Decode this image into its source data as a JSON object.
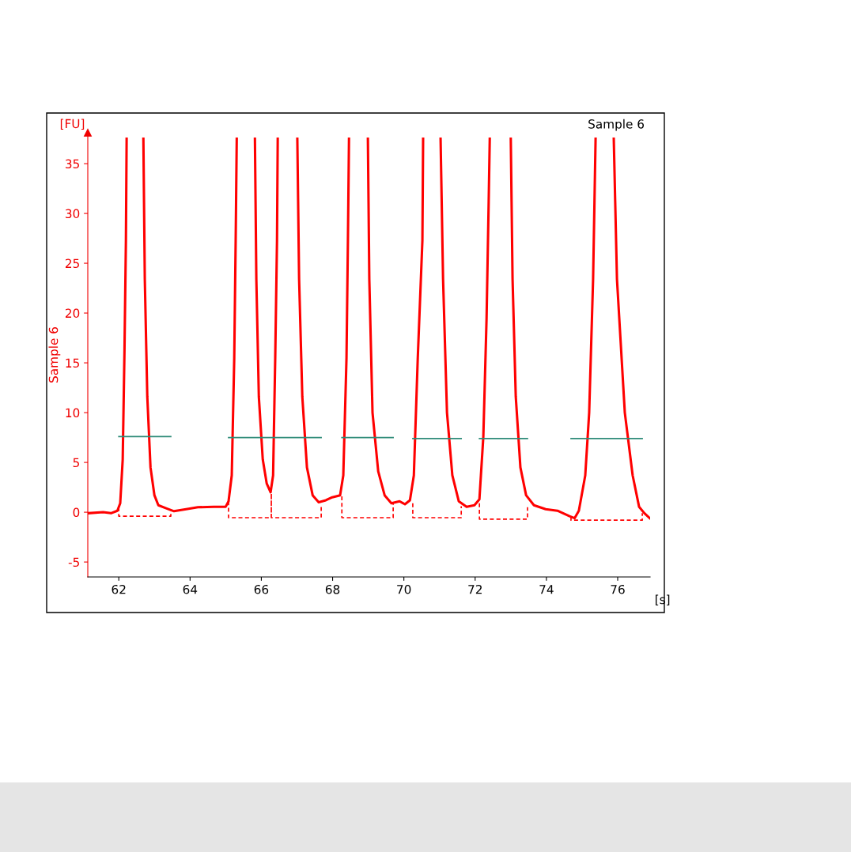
{
  "chart_data": {
    "type": "line",
    "title": "Sample 6",
    "xlabel": "[s]",
    "ylabel": "Sample 6",
    "annotations": [
      "[FU]"
    ],
    "xlim": [
      61.13,
      76.91
    ],
    "ylim": [
      -6.5,
      38.1
    ],
    "xticks": [
      62,
      64,
      66,
      68,
      70,
      72,
      74,
      76
    ],
    "yticks": [
      -5,
      0,
      5,
      10,
      15,
      20,
      25,
      30,
      35
    ],
    "grid": false,
    "tick_labels": "xy",
    "series": [
      {
        "color": "#ff0000",
        "line_style": "solid",
        "x": [
          61.13,
          61.56,
          61.78,
          61.96,
          62.04,
          62.11,
          62.16,
          62.2,
          62.22,
          62.45,
          62.69,
          62.73,
          62.8,
          62.89,
          63.0,
          63.11,
          63.33,
          63.55,
          63.89,
          64.22,
          64.66,
          65.0,
          65.08,
          65.17,
          65.24,
          65.28,
          65.31,
          65.55,
          65.82,
          65.86,
          65.93,
          66.04,
          66.15,
          66.26,
          66.33,
          66.39,
          66.44,
          66.46,
          66.7,
          67.01,
          67.06,
          67.15,
          67.28,
          67.44,
          67.61,
          67.81,
          67.99,
          68.21,
          68.3,
          68.39,
          68.43,
          68.46,
          68.7,
          68.99,
          69.03,
          69.12,
          69.28,
          69.46,
          69.65,
          69.88,
          70.03,
          70.17,
          70.28,
          70.39,
          70.52,
          70.54,
          70.8,
          71.03,
          71.1,
          71.21,
          71.36,
          71.54,
          71.76,
          71.98,
          72.12,
          72.23,
          72.32,
          72.38,
          72.41,
          72.7,
          73.0,
          73.05,
          73.14,
          73.27,
          73.43,
          73.65,
          73.98,
          74.31,
          74.65,
          74.79,
          74.91,
          75.09,
          75.2,
          75.31,
          75.38,
          75.6,
          75.89,
          75.98,
          76.2,
          76.42,
          76.6,
          76.75,
          76.9
        ],
        "values": [
          -0.1,
          0,
          -0.1,
          0.15,
          0.9,
          5.3,
          16.3,
          27.3,
          37.5,
          null,
          37.5,
          23.4,
          11.6,
          4.5,
          1.7,
          0.7,
          0.4,
          0.1,
          0.3,
          0.5,
          0.55,
          0.55,
          1.1,
          3.7,
          15.5,
          27.3,
          37.5,
          null,
          37.5,
          23.4,
          11.6,
          5.3,
          2.9,
          2.0,
          3.7,
          15.5,
          27.3,
          37.5,
          null,
          37.5,
          23.4,
          11.6,
          4.5,
          1.7,
          1.0,
          1.2,
          1.5,
          1.7,
          3.7,
          15.5,
          27.3,
          37.5,
          null,
          37.5,
          23.4,
          10.0,
          4.1,
          1.7,
          0.9,
          1.1,
          0.8,
          1.2,
          3.7,
          15.5,
          27.3,
          37.5,
          null,
          37.5,
          23.4,
          10.0,
          3.7,
          1.1,
          0.55,
          0.7,
          1.3,
          7.6,
          19.4,
          31.2,
          37.5,
          null,
          37.5,
          23.4,
          11.6,
          4.5,
          1.7,
          0.7,
          0.3,
          0.15,
          -0.4,
          -0.6,
          0.15,
          3.7,
          10.0,
          23.4,
          37.5,
          null,
          37.5,
          23.4,
          10.0,
          3.7,
          0.55,
          -0.1,
          -0.6
        ]
      },
      {
        "type": "line",
        "color": "#2e8b78",
        "line_style": "solid",
        "x": [
          62.0,
          63.46
        ],
        "values": [
          7.6,
          7.6
        ]
      },
      {
        "type": "line",
        "color": "#2e8b78",
        "line_style": "solid",
        "x": [
          65.08,
          67.68
        ],
        "values": [
          7.5,
          7.5
        ]
      },
      {
        "type": "line",
        "color": "#2e8b78",
        "line_style": "solid",
        "x": [
          68.26,
          69.7
        ],
        "values": [
          7.5,
          7.5
        ]
      },
      {
        "type": "line",
        "color": "#2e8b78",
        "line_style": "solid",
        "x": [
          70.25,
          71.61
        ],
        "values": [
          7.4,
          7.4
        ]
      },
      {
        "type": "line",
        "color": "#2e8b78",
        "line_style": "solid",
        "x": [
          72.12,
          73.47
        ],
        "values": [
          7.4,
          7.4
        ]
      },
      {
        "type": "line",
        "color": "#2e8b78",
        "line_style": "solid",
        "x": [
          74.69,
          76.69
        ],
        "values": [
          7.4,
          7.4
        ]
      },
      {
        "type": "line",
        "color": "#ff0000",
        "line_style": "dashed",
        "x": [
          62.0,
          62.0,
          63.46,
          63.46
        ],
        "values": [
          0.5,
          -0.4,
          -0.4,
          0.1
        ]
      },
      {
        "type": "line",
        "color": "#ff0000",
        "line_style": "dashed",
        "x": [
          65.08,
          65.08,
          66.28,
          66.28,
          66.28,
          67.68,
          67.68
        ],
        "values": [
          1.1,
          -0.55,
          -0.55,
          1.9,
          -0.55,
          -0.55,
          0.7
        ]
      },
      {
        "type": "line",
        "color": "#ff0000",
        "line_style": "dashed",
        "x": [
          68.26,
          68.26,
          69.7,
          69.7
        ],
        "values": [
          1.6,
          -0.55,
          -0.55,
          0.9
        ]
      },
      {
        "type": "line",
        "color": "#ff0000",
        "line_style": "dashed",
        "x": [
          70.25,
          70.25,
          71.61,
          71.61
        ],
        "values": [
          0.9,
          -0.55,
          -0.55,
          0.6
        ]
      },
      {
        "type": "line",
        "color": "#ff0000",
        "line_style": "dashed",
        "x": [
          72.12,
          72.12,
          73.47,
          73.47
        ],
        "values": [
          0.9,
          -0.7,
          -0.7,
          0.5
        ]
      },
      {
        "type": "line",
        "color": "#ff0000",
        "line_style": "dashed",
        "x": [
          74.69,
          74.69,
          76.69,
          76.69
        ],
        "values": [
          -0.45,
          -0.8,
          -0.8,
          -0.1
        ]
      }
    ]
  }
}
